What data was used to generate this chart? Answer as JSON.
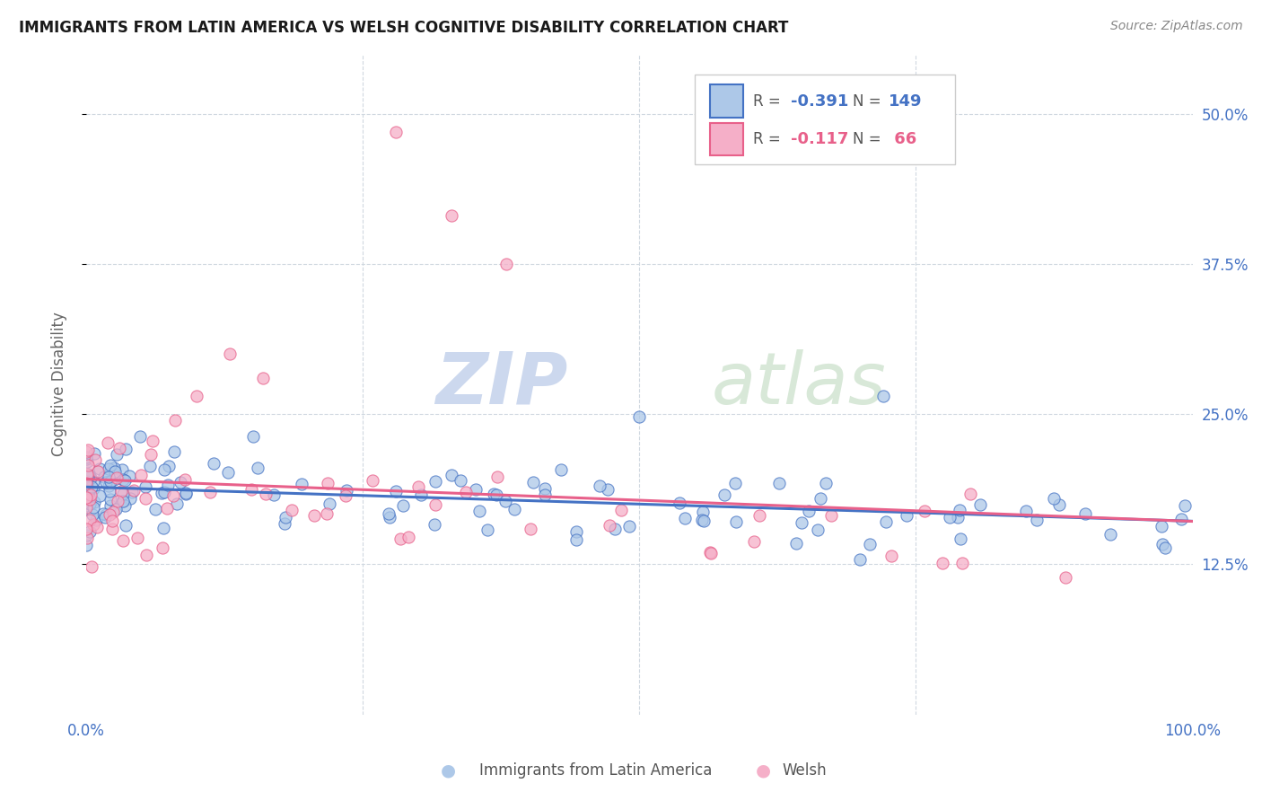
{
  "title": "IMMIGRANTS FROM LATIN AMERICA VS WELSH COGNITIVE DISABILITY CORRELATION CHART",
  "source": "Source: ZipAtlas.com",
  "ylabel": "Cognitive Disability",
  "right_yticks": [
    0.125,
    0.25,
    0.375,
    0.5
  ],
  "right_ytick_labels": [
    "12.5%",
    "25.0%",
    "37.5%",
    "50.0%"
  ],
  "xlim": [
    0.0,
    1.0
  ],
  "ylim": [
    0.0,
    0.55
  ],
  "series1_color": "#adc8e8",
  "series2_color": "#f5afc8",
  "line1_color": "#4472c4",
  "line2_color": "#e8608a",
  "R1": -0.391,
  "N1": 149,
  "R2": -0.117,
  "N2": 66,
  "legend_label1": "Immigrants from Latin America",
  "legend_label2": "Welsh",
  "background_color": "#ffffff",
  "grid_color": "#d0d8e0",
  "tick_color": "#4472c4",
  "ylabel_color": "#666666",
  "title_color": "#1a1a1a",
  "source_color": "#888888"
}
